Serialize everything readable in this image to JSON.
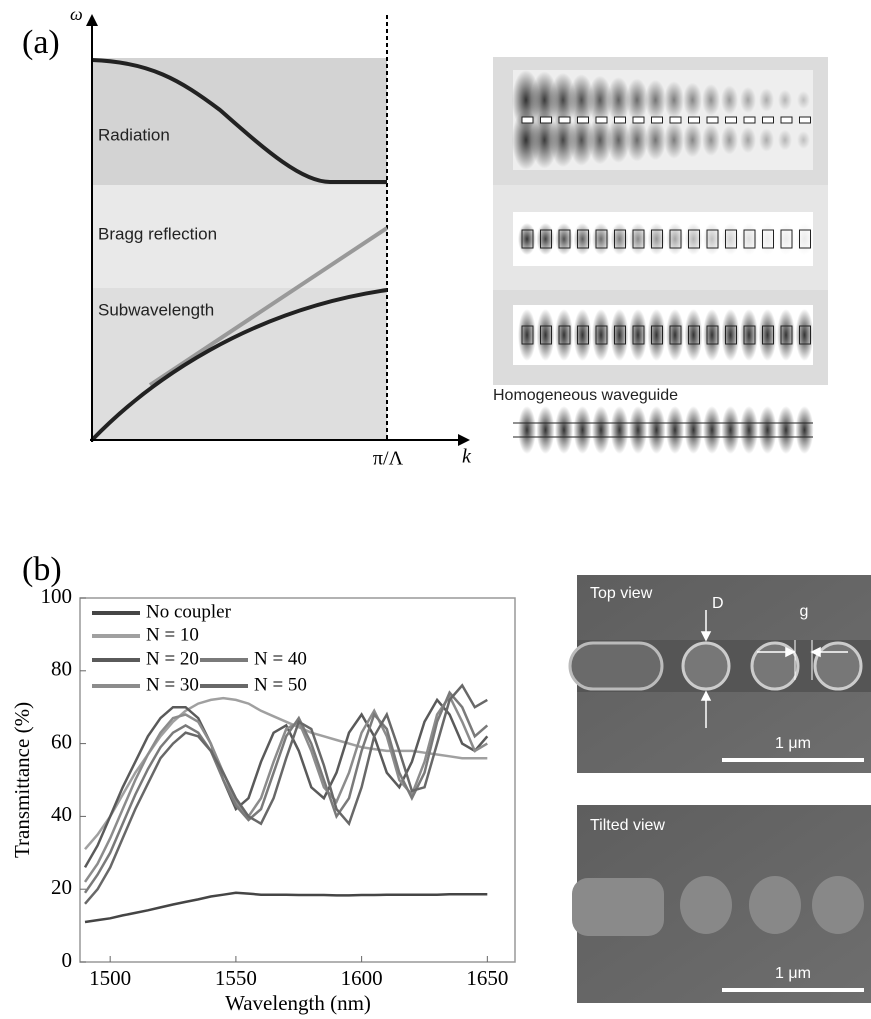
{
  "panel_a": {
    "label": "(a)",
    "y_axis": "ω",
    "x_axis": "k",
    "edge": "π/Λ",
    "regions": [
      "Radiation",
      "Bragg reflection",
      "Subwavelength"
    ],
    "caption": "Homogeneous waveguide"
  },
  "sem": {
    "top_title": "Top view",
    "diameter": "D",
    "gap": "g",
    "top_scale": "1 μm",
    "tilted_title": "Tilted view",
    "tilted_scale": "1 μm"
  },
  "chart_data": {
    "type": "line",
    "panel_label": "(b)",
    "x_label": "Wavelength (nm)",
    "y_label": "Transmittance (%)",
    "x": [
      1490,
      1495,
      1500,
      1505,
      1510,
      1515,
      1520,
      1525,
      1530,
      1535,
      1540,
      1545,
      1550,
      1555,
      1560,
      1565,
      1570,
      1575,
      1580,
      1585,
      1590,
      1595,
      1600,
      1605,
      1610,
      1615,
      1620,
      1625,
      1630,
      1635,
      1640,
      1645,
      1650
    ],
    "xlim": [
      1488,
      1661
    ],
    "ylim": [
      0,
      100
    ],
    "xticks": [
      1500,
      1550,
      1600,
      1650
    ],
    "yticks": [
      0,
      20,
      40,
      60,
      80,
      100
    ],
    "series": [
      {
        "name": "No coupler",
        "color": "#454545",
        "values": [
          11,
          11.5,
          12,
          12.8,
          13.5,
          14.2,
          15,
          15.8,
          16.5,
          17.2,
          18,
          18.5,
          19,
          18.8,
          18.5,
          18.5,
          18.5,
          18.4,
          18.4,
          18.4,
          18.3,
          18.3,
          18.4,
          18.4,
          18.5,
          18.5,
          18.5,
          18.5,
          18.5,
          18.6,
          18.6,
          18.6,
          18.6
        ]
      },
      {
        "name": "N = 10",
        "color": "#a0a0a0",
        "values": [
          31,
          35,
          40,
          46,
          52,
          57,
          62,
          66,
          69,
          71,
          72,
          72.5,
          72,
          71,
          69,
          67.5,
          66,
          64.5,
          63,
          62,
          61,
          60,
          59,
          58.5,
          58,
          58,
          58,
          57.5,
          57,
          56.5,
          56,
          56,
          56
        ]
      },
      {
        "name": "N = 20",
        "color": "#5a5a5a",
        "values": [
          26,
          32,
          40,
          48,
          55,
          62,
          67,
          70,
          70,
          67,
          60,
          50,
          42,
          45,
          55,
          63,
          65,
          58,
          48,
          45,
          52,
          63,
          68,
          62,
          52,
          48,
          55,
          66,
          72,
          68,
          60,
          58,
          62
        ]
      },
      {
        "name": "N = 30",
        "color": "#8c8c8c",
        "values": [
          22,
          27,
          34,
          42,
          50,
          57,
          63,
          67,
          68,
          66,
          60,
          52,
          44,
          40,
          45,
          55,
          64,
          66,
          58,
          48,
          44,
          52,
          63,
          69,
          62,
          50,
          46,
          55,
          68,
          73,
          66,
          58,
          60
        ]
      },
      {
        "name": "N = 40",
        "color": "#7a7a7a",
        "values": [
          19,
          24,
          30,
          38,
          46,
          53,
          59,
          63,
          65,
          63,
          58,
          50,
          43,
          39,
          42,
          52,
          62,
          67,
          60,
          50,
          40,
          45,
          58,
          68,
          64,
          52,
          45,
          52,
          66,
          74,
          70,
          62,
          65
        ]
      },
      {
        "name": "N = 50",
        "color": "#686868",
        "values": [
          16,
          20,
          26,
          34,
          42,
          49,
          56,
          60,
          63,
          62,
          58,
          52,
          45,
          40,
          38,
          45,
          56,
          66,
          64,
          54,
          42,
          38,
          48,
          62,
          68,
          58,
          47,
          48,
          60,
          72,
          76,
          70,
          72
        ]
      }
    ]
  }
}
